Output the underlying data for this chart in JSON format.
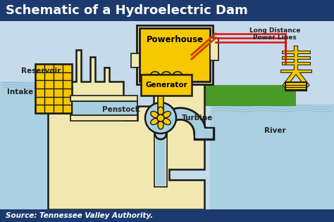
{
  "title": "Schematic of a Hydroelectric Dam",
  "source_text": "Source: Tennessee Valley Authority.",
  "title_bg": "#1c3a6e",
  "title_color": "#ffffff",
  "footer_bg": "#1c3a6e",
  "footer_color": "#ffffff",
  "bg_color": "#c5daea",
  "water_color": "#a8cfe0",
  "water_wave_color": "#88b8d0",
  "dam_fill": "#f0e8b0",
  "dam_outline": "#1a1a1a",
  "yellow_bright": "#f5c800",
  "yellow_outline": "#1a1a1a",
  "green_fill": "#4a9a2a",
  "red_line_color": "#dd1111",
  "orange_line_color": "#cc4400",
  "labels": {
    "reservoir": "Reservoir",
    "intake": "Intake",
    "penstock": "Penstock",
    "powerhouse": "Powerhouse",
    "generator": "Generator",
    "turbine": "Turbine",
    "river": "River",
    "power_lines": "Long Distance\nPower Lines"
  },
  "label_fontsize": 7.5,
  "title_fontsize": 13
}
